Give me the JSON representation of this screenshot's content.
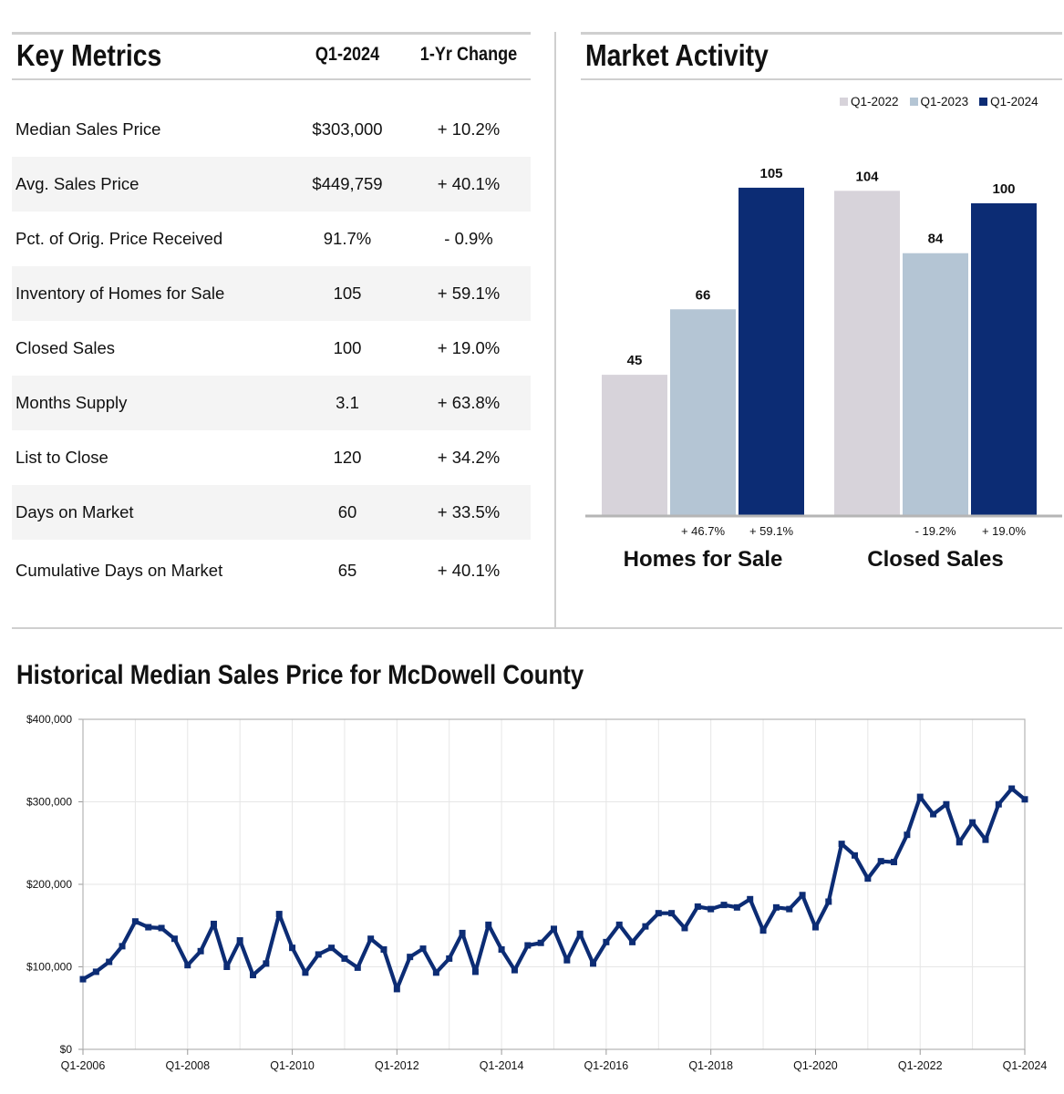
{
  "key_metrics": {
    "title": "Key Metrics",
    "period_header": "Q1-2024",
    "change_header": "1-Yr Change",
    "rows": [
      {
        "label": "Median Sales Price",
        "value": "$303,000",
        "change": "+ 10.2%"
      },
      {
        "label": "Avg. Sales Price",
        "value": "$449,759",
        "change": "+ 40.1%"
      },
      {
        "label": "Pct. of Orig. Price Received",
        "value": "91.7%",
        "change": "- 0.9%"
      },
      {
        "label": "Inventory of Homes for Sale",
        "value": "105",
        "change": "+ 59.1%"
      },
      {
        "label": "Closed Sales",
        "value": "100",
        "change": "+ 19.0%"
      },
      {
        "label": "Months Supply",
        "value": "3.1",
        "change": "+ 63.8%"
      },
      {
        "label": "List to Close",
        "value": "120",
        "change": "+ 34.2%"
      },
      {
        "label": "Days on Market",
        "value": "60",
        "change": "+ 33.5%"
      },
      {
        "label": "Cumulative Days on Market",
        "value": "65",
        "change": "+ 40.1%"
      }
    ]
  },
  "market_activity": {
    "title": "Market Activity"
  },
  "historical": {
    "title": "Historical Median Sales Price for McDowell County"
  },
  "colors": {
    "q1_2022": "#d7d3da",
    "q1_2023": "#b4c5d4",
    "q1_2024": "#0c2c74",
    "line": "#0c2c74",
    "grid": "#e6e6e6",
    "axis": "#9a9a9a"
  },
  "chart_data": [
    {
      "type": "bar",
      "categories": [
        "Homes for Sale",
        "Closed Sales"
      ],
      "series": [
        {
          "name": "Q1-2022",
          "values": [
            45,
            104
          ]
        },
        {
          "name": "Q1-2023",
          "values": [
            66,
            84
          ]
        },
        {
          "name": "Q1-2024",
          "values": [
            105,
            100
          ]
        }
      ],
      "changes": [
        [
          "+ 46.7%",
          "+ 59.1%"
        ],
        [
          "- 19.2%",
          "+ 19.0%"
        ]
      ],
      "legend": "top-right",
      "ylim": [
        0,
        110
      ]
    },
    {
      "type": "line",
      "x_tick_labels": [
        "Q1-2006",
        "Q1-2008",
        "Q1-2010",
        "Q1-2012",
        "Q1-2014",
        "Q1-2016",
        "Q1-2018",
        "Q1-2020",
        "Q1-2022",
        "Q1-2024"
      ],
      "y_tick_labels": [
        "$0",
        "$100,000",
        "$200,000",
        "$300,000",
        "$400,000"
      ],
      "ylim": [
        0,
        400000
      ],
      "x_start": "Q1-2006",
      "x_end": "Q1-2024",
      "grid": true,
      "values": [
        85000,
        94000,
        106000,
        125000,
        155000,
        148000,
        147000,
        134000,
        102000,
        119000,
        152000,
        100000,
        132000,
        90000,
        104000,
        164000,
        123000,
        93000,
        115000,
        123000,
        110000,
        99000,
        134000,
        121000,
        73000,
        112000,
        122000,
        93000,
        110000,
        141000,
        94000,
        151000,
        121000,
        96000,
        126000,
        129000,
        146000,
        108000,
        140000,
        104000,
        130000,
        151000,
        130000,
        149000,
        165000,
        165000,
        147000,
        173000,
        170000,
        175000,
        172000,
        182000,
        144000,
        172000,
        170000,
        187000,
        148000,
        179000,
        249000,
        235000,
        207000,
        228000,
        227000,
        260000,
        306000,
        285000,
        297000,
        251000,
        275000,
        254000,
        297000,
        316000,
        303000
      ]
    }
  ]
}
